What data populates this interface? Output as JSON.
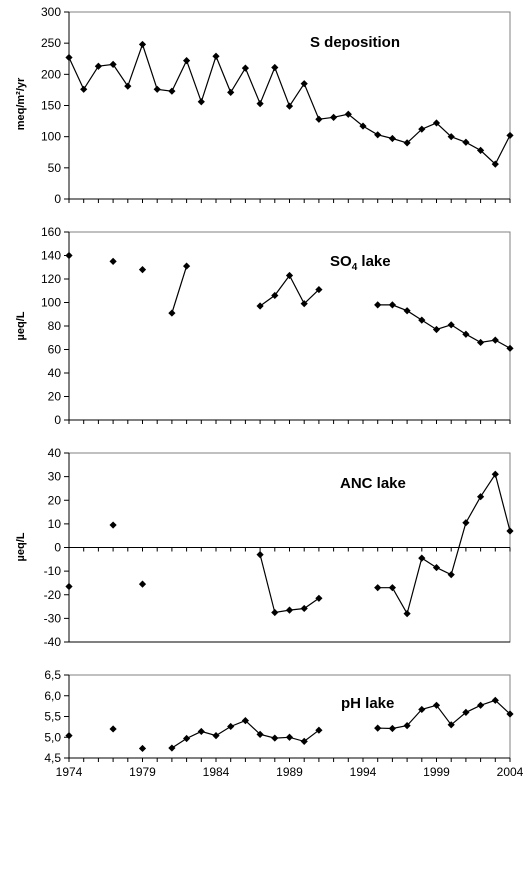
{
  "chart_data": [
    {
      "type": "line",
      "title_main": "S deposition",
      "title_sub": "",
      "title_rest": "",
      "ylabel": "meq/m²/yr",
      "ylim": [
        0,
        300
      ],
      "yticks": [
        0,
        50,
        100,
        150,
        200,
        250,
        300
      ],
      "ytick_labels": [
        "0",
        "50",
        "100",
        "150",
        "200",
        "250",
        "300"
      ],
      "xlim": [
        1974,
        2004
      ],
      "zero_line": false,
      "series": [
        {
          "values": [
            [
              1974,
              227
            ],
            [
              1975,
              176
            ],
            [
              1976,
              213
            ],
            [
              1977,
              216
            ],
            [
              1978,
              181
            ],
            [
              1979,
              248
            ],
            [
              1980,
              176
            ],
            [
              1981,
              173
            ],
            [
              1982,
              222
            ],
            [
              1983,
              156
            ],
            [
              1984,
              229
            ],
            [
              1985,
              171
            ],
            [
              1986,
              210
            ],
            [
              1987,
              153
            ],
            [
              1988,
              211
            ],
            [
              1989,
              149
            ],
            [
              1990,
              185
            ],
            [
              1991,
              128
            ],
            [
              1992,
              131
            ],
            [
              1993,
              136
            ],
            [
              1994,
              117
            ],
            [
              1995,
              103
            ],
            [
              1996,
              97
            ],
            [
              1997,
              90
            ],
            [
              1998,
              112
            ],
            [
              1999,
              122
            ],
            [
              2000,
              100
            ],
            [
              2001,
              91
            ],
            [
              2002,
              78
            ],
            [
              2003,
              56
            ],
            [
              2004,
              102
            ]
          ]
        }
      ]
    },
    {
      "type": "line",
      "title_main": "SO",
      "title_sub": "4",
      "title_rest": " lake",
      "ylabel": "µeq/L",
      "ylim": [
        0,
        160
      ],
      "yticks": [
        0,
        20,
        40,
        60,
        80,
        100,
        120,
        140,
        160
      ],
      "ytick_labels": [
        "0",
        "20",
        "40",
        "60",
        "80",
        "100",
        "120",
        "140",
        "160"
      ],
      "xlim": [
        1974,
        2004
      ],
      "zero_line": false,
      "series": [
        {
          "values": [
            [
              1974,
              140
            ],
            null,
            null,
            [
              1977,
              135
            ],
            null,
            [
              1979,
              128
            ],
            null,
            [
              1981,
              91
            ],
            [
              1982,
              131
            ],
            null,
            null,
            null,
            null,
            [
              1987,
              97
            ],
            [
              1988,
              106
            ],
            [
              1989,
              123
            ],
            [
              1990,
              99
            ],
            [
              1991,
              111
            ],
            null,
            null,
            null,
            [
              1995,
              98
            ],
            [
              1996,
              98
            ],
            [
              1997,
              93
            ],
            [
              1998,
              85
            ],
            [
              1999,
              77
            ],
            [
              2000,
              81
            ],
            [
              2001,
              73
            ],
            [
              2002,
              66
            ],
            [
              2003,
              68
            ],
            [
              2004,
              61
            ]
          ]
        }
      ]
    },
    {
      "type": "line",
      "title_main": "ANC lake",
      "title_sub": "",
      "title_rest": "",
      "ylabel": "µeq/L",
      "ylim": [
        -40,
        40
      ],
      "yticks": [
        -40,
        -30,
        -20,
        -10,
        0,
        10,
        20,
        30,
        40
      ],
      "ytick_labels": [
        "-40",
        "-30",
        "-20",
        "-10",
        "0",
        "10",
        "20",
        "30",
        "40"
      ],
      "xlim": [
        1974,
        2004
      ],
      "zero_line": true,
      "series": [
        {
          "values": [
            [
              1974,
              -16.5
            ],
            null,
            null,
            [
              1977,
              9.5
            ],
            null,
            [
              1979,
              -15.5
            ],
            null,
            null,
            null,
            null,
            null,
            null,
            null,
            [
              1987,
              -3
            ],
            [
              1988,
              -27.5
            ],
            [
              1989,
              -26.5
            ],
            [
              1990,
              -25.8
            ],
            [
              1991,
              -21.5
            ],
            null,
            null,
            null,
            [
              1995,
              -17
            ],
            [
              1996,
              -17
            ],
            [
              1997,
              -28
            ],
            [
              1998,
              -4.5
            ],
            [
              1999,
              -8.5
            ],
            [
              2000,
              -11.5
            ],
            [
              2001,
              10.5
            ],
            [
              2002,
              21.5
            ],
            [
              2003,
              31
            ],
            [
              2004,
              7
            ]
          ]
        }
      ]
    },
    {
      "type": "line",
      "title_main": "pH lake",
      "title_sub": "",
      "title_rest": "",
      "ylabel": "",
      "ylim": [
        4.5,
        6.5
      ],
      "yticks": [
        4.5,
        5.0,
        5.5,
        6.0,
        6.5
      ],
      "ytick_labels": [
        "4,5",
        "5,0",
        "5,5",
        "6,0",
        "6,5"
      ],
      "xlim": [
        1974,
        2004
      ],
      "zero_line": false,
      "series": [
        {
          "values": [
            [
              1974,
              5.04
            ],
            null,
            null,
            [
              1977,
              5.2
            ],
            null,
            [
              1979,
              4.73
            ],
            null,
            [
              1981,
              4.74
            ],
            [
              1982,
              4.97
            ],
            [
              1983,
              5.14
            ],
            [
              1984,
              5.04
            ],
            [
              1985,
              5.26
            ],
            [
              1986,
              5.4
            ],
            [
              1987,
              5.07
            ],
            [
              1988,
              4.98
            ],
            [
              1989,
              5.0
            ],
            [
              1990,
              4.9
            ],
            [
              1991,
              5.17
            ],
            null,
            null,
            null,
            [
              1995,
              5.22
            ],
            [
              1996,
              5.21
            ],
            [
              1997,
              5.28
            ],
            [
              1998,
              5.67
            ],
            [
              1999,
              5.77
            ],
            [
              2000,
              5.3
            ],
            [
              2001,
              5.6
            ],
            [
              2002,
              5.77
            ],
            [
              2003,
              5.89
            ],
            [
              2004,
              5.56
            ]
          ]
        }
      ]
    }
  ],
  "x_ticks": [
    1974,
    1979,
    1984,
    1989,
    1994,
    1999,
    2004
  ],
  "x_tick_labels": [
    "1974",
    "1979",
    "1984",
    "1989",
    "1994",
    "1999",
    "2004"
  ],
  "colors": {
    "line": "#000000",
    "marker": "#000000",
    "axis": "#000000",
    "background": "#ffffff"
  }
}
